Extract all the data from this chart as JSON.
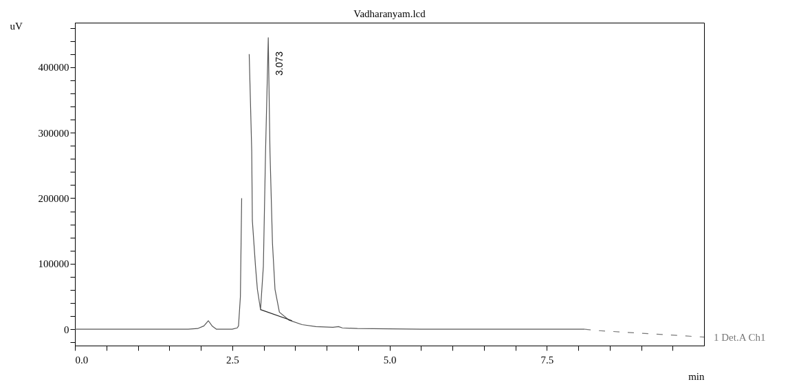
{
  "chart_data": {
    "type": "line",
    "title": "Vadharanyam.lcd",
    "xlabel": "min",
    "ylabel": "uV",
    "xlim": [
      0,
      10
    ],
    "ylim": [
      -25000,
      468000
    ],
    "xticks": [
      {
        "value": 0,
        "label": "0.0"
      },
      {
        "value": 0.5,
        "label": null
      },
      {
        "value": 1,
        "label": null
      },
      {
        "value": 1.5,
        "label": null
      },
      {
        "value": 2,
        "label": null
      },
      {
        "value": 2.5,
        "label": "2.5"
      },
      {
        "value": 3,
        "label": null
      },
      {
        "value": 3.5,
        "label": null
      },
      {
        "value": 4,
        "label": null
      },
      {
        "value": 4.5,
        "label": null
      },
      {
        "value": 5,
        "label": "5.0"
      },
      {
        "value": 5.5,
        "label": null
      },
      {
        "value": 6,
        "label": null
      },
      {
        "value": 6.5,
        "label": null
      },
      {
        "value": 7,
        "label": null
      },
      {
        "value": 7.5,
        "label": "7.5"
      },
      {
        "value": 8,
        "label": null
      },
      {
        "value": 8.5,
        "label": null
      },
      {
        "value": 9,
        "label": null
      },
      {
        "value": 9.5,
        "label": null
      }
    ],
    "yticks": [
      {
        "value": -20000,
        "label": null
      },
      0,
      {
        "value": 20000,
        "label": null
      },
      {
        "value": 40000,
        "label": null
      },
      {
        "value": 60000,
        "label": null
      },
      {
        "value": 80000,
        "label": null
      },
      100000,
      {
        "value": 120000,
        "label": null
      },
      {
        "value": 140000,
        "label": null
      },
      {
        "value": 160000,
        "label": null
      },
      {
        "value": 180000,
        "label": null
      },
      200000,
      {
        "value": 220000,
        "label": null
      },
      {
        "value": 240000,
        "label": null
      },
      {
        "value": 260000,
        "label": null
      },
      {
        "value": 280000,
        "label": null
      },
      300000,
      {
        "value": 320000,
        "label": null
      },
      {
        "value": 340000,
        "label": null
      },
      {
        "value": 360000,
        "label": null
      },
      {
        "value": 380000,
        "label": null
      },
      400000,
      {
        "value": 420000,
        "label": null
      },
      {
        "value": 440000,
        "label": null
      },
      {
        "value": 460000,
        "label": null
      }
    ],
    "grid": false,
    "marker": "none",
    "annotations": [
      {
        "text": "3.073",
        "x": 3.073,
        "y": 445000
      }
    ],
    "series": [
      {
        "color": "#555555",
        "line_style": "solid",
        "x": [
          0,
          1.8,
          1.95,
          2.05,
          2.12,
          2.18,
          2.25,
          2.5,
          2.58,
          2.6,
          2.63,
          2.65,
          2.675,
          2.76,
          2.77,
          2.81,
          2.82,
          2.87,
          2.9,
          2.95,
          2.995,
          3.03,
          3.073,
          3.1,
          3.14,
          3.18,
          3.25,
          3.4,
          3.61,
          3.83,
          4.1,
          4.19,
          4.25,
          4.49,
          5.5,
          7.0,
          8.1
        ],
        "values": [
          0,
          0,
          1000,
          5000,
          13000,
          5000,
          0,
          0,
          2000,
          5000,
          50000,
          200000,
          null,
          null,
          420000,
          272000,
          166000,
          96000,
          61000,
          30000,
          96000,
          272000,
          445000,
          272000,
          131000,
          61000,
          26000,
          14000,
          7000,
          4000,
          3000,
          4000,
          2000,
          1000,
          0,
          0,
          0
        ]
      },
      {
        "color": "#222222",
        "line_style": "solid",
        "x": [
          2.95,
          3.45
        ],
        "values": [
          30000,
          13000
        ]
      },
      {
        "name": "1 Det.A Ch1",
        "color": "#777777",
        "line_style": "dashed",
        "x": [
          8.1,
          8.3,
          10
        ],
        "values": [
          0,
          -2000,
          -12000
        ]
      }
    ]
  }
}
